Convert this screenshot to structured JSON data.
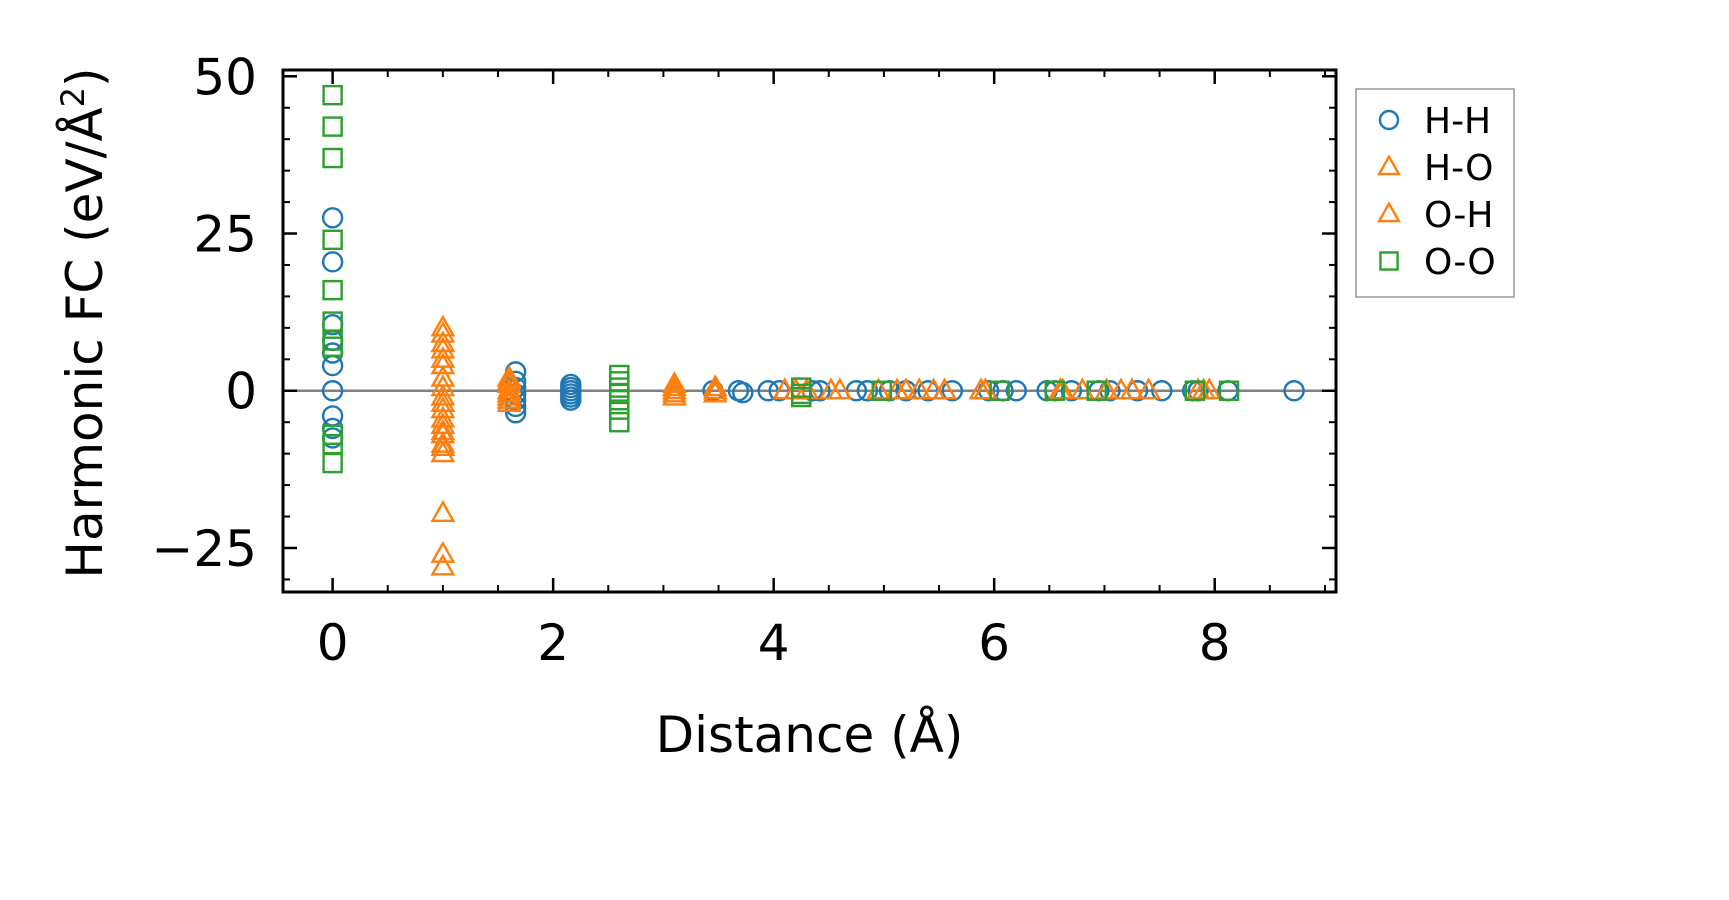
{
  "chart_data": {
    "type": "scatter",
    "title": "",
    "xlabel": "Distance (Å)",
    "ylabel_main": "Harmonic FC (eV/Å",
    "ylabel_sup": "2",
    "ylabel_close": ")",
    "xlim": [
      -0.45,
      9.1
    ],
    "ylim": [
      -32,
      51
    ],
    "xticks": [
      0,
      2,
      4,
      6,
      8
    ],
    "xtick_labels": [
      "0",
      "2",
      "4",
      "6",
      "8"
    ],
    "yticks": [
      -25,
      0,
      25,
      50
    ],
    "ytick_labels": [
      "−25",
      "0",
      "25",
      "50"
    ],
    "grid": false,
    "zero_line": true,
    "legend_position": "right-outside-top",
    "series": [
      {
        "name": "H-H",
        "marker": "circle",
        "color": "#1f77b4",
        "points": [
          [
            0,
            27.5
          ],
          [
            0,
            20.5
          ],
          [
            0,
            10.5
          ],
          [
            0,
            8.0
          ],
          [
            0,
            6.0
          ],
          [
            0,
            4.0
          ],
          [
            0,
            0.0
          ],
          [
            0,
            -4.0
          ],
          [
            0,
            -6.0
          ],
          [
            0,
            -7.5
          ],
          [
            1.66,
            3.0
          ],
          [
            1.66,
            1.5
          ],
          [
            1.66,
            0.5
          ],
          [
            1.66,
            -0.5
          ],
          [
            1.66,
            -1.5
          ],
          [
            1.66,
            -2.5
          ],
          [
            1.66,
            -3.5
          ],
          [
            2.16,
            1.0
          ],
          [
            2.16,
            0.5
          ],
          [
            2.16,
            0.0
          ],
          [
            2.16,
            -0.5
          ],
          [
            2.16,
            -1.0
          ],
          [
            2.16,
            -1.5
          ],
          [
            3.45,
            0.0
          ],
          [
            3.68,
            0.0
          ],
          [
            3.72,
            -0.3
          ],
          [
            3.95,
            0.0
          ],
          [
            4.05,
            0.0
          ],
          [
            4.35,
            0.0
          ],
          [
            4.42,
            0.0
          ],
          [
            4.75,
            0.0
          ],
          [
            4.85,
            0.0
          ],
          [
            5.05,
            0.0
          ],
          [
            5.2,
            0.0
          ],
          [
            5.4,
            0.0
          ],
          [
            5.62,
            0.0
          ],
          [
            5.95,
            0.0
          ],
          [
            6.08,
            0.0
          ],
          [
            6.2,
            0.0
          ],
          [
            6.48,
            0.0
          ],
          [
            6.55,
            0.0
          ],
          [
            6.7,
            0.0
          ],
          [
            6.95,
            0.0
          ],
          [
            7.05,
            0.0
          ],
          [
            7.3,
            0.0
          ],
          [
            7.52,
            0.0
          ],
          [
            7.8,
            0.0
          ],
          [
            7.85,
            0.0
          ],
          [
            8.12,
            0.0
          ],
          [
            8.72,
            0.0
          ]
        ]
      },
      {
        "name": "H-O",
        "marker": "triangle",
        "color": "#ff7f0e",
        "points": [
          [
            1.0,
            10.0
          ],
          [
            1.0,
            7.5
          ],
          [
            1.0,
            5.0
          ],
          [
            1.0,
            2.0
          ],
          [
            1.0,
            -1.0
          ],
          [
            1.0,
            -3.0
          ],
          [
            1.0,
            -5.5
          ],
          [
            1.0,
            -7.0
          ],
          [
            1.0,
            -8.5
          ],
          [
            1.0,
            -10.0
          ],
          [
            1.0,
            -19.5
          ],
          [
            1.0,
            -26.0
          ],
          [
            1.0,
            -28.0
          ],
          [
            1.6,
            2.0
          ],
          [
            1.6,
            1.0
          ],
          [
            1.6,
            0.0
          ],
          [
            1.6,
            -1.0
          ],
          [
            1.6,
            -2.0
          ],
          [
            3.1,
            1.0
          ],
          [
            3.1,
            0.0
          ],
          [
            3.1,
            -1.0
          ],
          [
            3.47,
            0.5
          ],
          [
            3.47,
            -0.5
          ],
          [
            4.1,
            0.0
          ],
          [
            4.3,
            0.0
          ],
          [
            4.52,
            0.0
          ],
          [
            4.95,
            0.0
          ],
          [
            5.12,
            0.0
          ],
          [
            5.32,
            0.0
          ],
          [
            5.55,
            0.0
          ],
          [
            5.92,
            0.0
          ],
          [
            6.62,
            0.0
          ],
          [
            6.8,
            0.0
          ],
          [
            7.02,
            0.0
          ],
          [
            7.25,
            0.0
          ],
          [
            7.4,
            0.0
          ],
          [
            7.85,
            0.0
          ],
          [
            7.95,
            0.0
          ]
        ]
      },
      {
        "name": "O-H",
        "marker": "triangle",
        "color": "#ff7f0e",
        "points": [
          [
            1.0,
            9.0
          ],
          [
            1.0,
            6.5
          ],
          [
            1.0,
            4.0
          ],
          [
            1.0,
            0.5
          ],
          [
            1.0,
            -2.0
          ],
          [
            1.0,
            -4.5
          ],
          [
            1.0,
            -6.5
          ],
          [
            1.0,
            -9.0
          ],
          [
            1.6,
            1.5
          ],
          [
            1.6,
            -0.5
          ],
          [
            1.6,
            -1.5
          ],
          [
            3.1,
            0.5
          ],
          [
            3.1,
            -0.5
          ],
          [
            3.47,
            0.0
          ],
          [
            4.2,
            0.0
          ],
          [
            4.6,
            0.0
          ],
          [
            5.2,
            0.0
          ],
          [
            5.45,
            0.0
          ],
          [
            5.88,
            0.0
          ],
          [
            6.6,
            0.0
          ],
          [
            7.15,
            0.0
          ],
          [
            7.9,
            0.0
          ]
        ]
      },
      {
        "name": "O-O",
        "marker": "square",
        "color": "#2ca02c",
        "points": [
          [
            0,
            47.0
          ],
          [
            0,
            42.0
          ],
          [
            0,
            37.0
          ],
          [
            0,
            24.0
          ],
          [
            0,
            16.0
          ],
          [
            0,
            11.0
          ],
          [
            0,
            8.0
          ],
          [
            0,
            7.0
          ],
          [
            0,
            -7.0
          ],
          [
            0,
            -8.5
          ],
          [
            0,
            -11.5
          ],
          [
            2.6,
            2.5
          ],
          [
            2.6,
            1.5
          ],
          [
            2.6,
            0.5
          ],
          [
            2.6,
            -0.5
          ],
          [
            2.6,
            -1.5
          ],
          [
            2.6,
            -3.0
          ],
          [
            2.6,
            -5.0
          ],
          [
            4.25,
            0.5
          ],
          [
            4.25,
            -0.5
          ],
          [
            4.25,
            -1.0
          ],
          [
            4.98,
            0.0
          ],
          [
            6.05,
            0.0
          ],
          [
            6.55,
            0.0
          ],
          [
            6.93,
            0.0
          ],
          [
            7.82,
            0.0
          ],
          [
            8.13,
            0.0
          ]
        ]
      }
    ]
  }
}
